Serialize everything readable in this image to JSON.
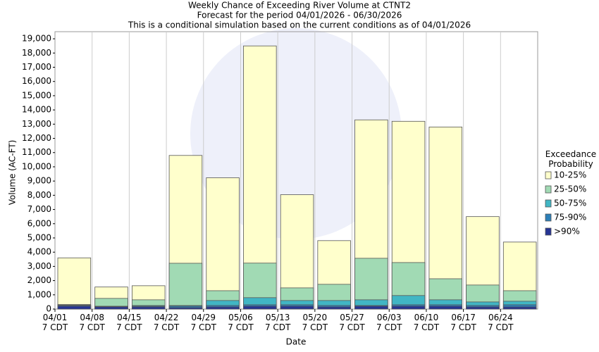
{
  "chart_data": {
    "type": "bar",
    "barmode": "overlay",
    "title": "Weekly Chance of Exceeding River Volume at CTNT2",
    "subtitle": "Forecast for the period 04/01/2026 - 06/30/2026",
    "note": "This is a conditional simulation based on the current conditions as of 04/01/2026",
    "x_label": "Date",
    "y_label": "Volume (AC-FT)",
    "legend_title": "Exceedance\nProbability",
    "categories": [
      "04/01\n7 CDT",
      "04/08\n7 CDT",
      "04/15\n7 CDT",
      "04/22\n7 CDT",
      "04/29\n7 CDT",
      "05/06\n7 CDT",
      "05/13\n7 CDT",
      "05/20\n7 CDT",
      "05/27\n7 CDT",
      "06/03\n7 CDT",
      "06/10\n7 CDT",
      "06/17\n7 CDT",
      "06/24\n7 CDT"
    ],
    "series": [
      {
        "name": "10-25%",
        "color": "#ffffcc",
        "values": [
          3600,
          1550,
          1640,
          10800,
          9230,
          18500,
          8040,
          4810,
          13300,
          13200,
          12800,
          6500,
          4710
        ]
      },
      {
        "name": "25-50%",
        "color": "#a1dab4",
        "values": [
          320,
          750,
          650,
          3220,
          1290,
          3230,
          1490,
          1740,
          3570,
          3270,
          2130,
          1690,
          1290
        ]
      },
      {
        "name": "50-75%",
        "color": "#41b6c4",
        "values": [
          280,
          200,
          250,
          250,
          600,
          800,
          600,
          600,
          650,
          950,
          650,
          500,
          550
        ]
      },
      {
        "name": "75-90%",
        "color": "#2c7fb8",
        "values": [
          250,
          180,
          200,
          200,
          250,
          300,
          300,
          250,
          250,
          300,
          300,
          250,
          300
        ]
      },
      {
        "name": ">90%",
        "color": "#253494",
        "values": [
          200,
          150,
          150,
          100,
          150,
          200,
          200,
          150,
          200,
          200,
          200,
          150,
          150
        ]
      }
    ],
    "ylim": [
      0,
      19500
    ],
    "yticks": [
      0,
      {
        "value": 1000,
        "label": "1,000"
      },
      {
        "value": 2000,
        "label": "2,000"
      },
      {
        "value": 3000,
        "label": "3,000"
      },
      {
        "value": 4000,
        "label": "4,000"
      },
      {
        "value": 5000,
        "label": "5,000"
      },
      {
        "value": 6000,
        "label": "6,000"
      },
      {
        "value": 7000,
        "label": "7,000"
      },
      {
        "value": 8000,
        "label": "8,000"
      },
      {
        "value": 9000,
        "label": "9,000"
      },
      {
        "value": 10000,
        "label": "10,000"
      },
      {
        "value": 11000,
        "label": "11,000"
      },
      {
        "value": 12000,
        "label": "12,000"
      },
      {
        "value": 13000,
        "label": "13,000"
      },
      {
        "value": 14000,
        "label": "14,000"
      },
      {
        "value": 15000,
        "label": "15,000"
      },
      {
        "value": 16000,
        "label": "16,000"
      },
      {
        "value": 17000,
        "label": "17,000"
      },
      {
        "value": 18000,
        "label": "18,000"
      },
      {
        "value": 19000,
        "label": "19,000"
      }
    ]
  }
}
